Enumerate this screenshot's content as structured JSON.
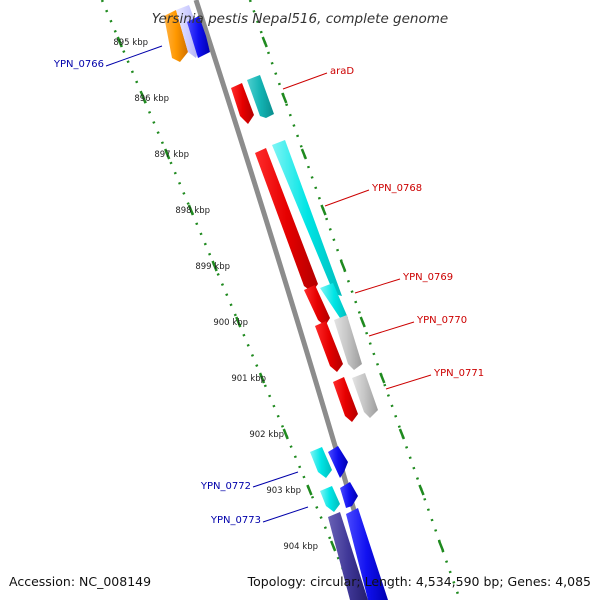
{
  "title": "Yersinia pestis Nepal516, complete genome",
  "colors": {
    "backbone": "#8c8c8c",
    "tick": "#1f8a1f",
    "forward_label": "#cc0000",
    "reverse_label": "#0000aa"
  },
  "ticks": [
    {
      "position_kbp": 895,
      "label": "895 kbp"
    },
    {
      "position_kbp": 896,
      "label": "896 kbp"
    },
    {
      "position_kbp": 897,
      "label": "897 kbp"
    },
    {
      "position_kbp": 898,
      "label": "898 kbp"
    },
    {
      "position_kbp": 899,
      "label": "899 kbp"
    },
    {
      "position_kbp": 900,
      "label": "900 kbp"
    },
    {
      "position_kbp": 901,
      "label": "901 kbp"
    },
    {
      "position_kbp": 902,
      "label": "902 kbp"
    },
    {
      "position_kbp": 903,
      "label": "903 kbp"
    },
    {
      "position_kbp": 904,
      "label": "904 kbp"
    }
  ],
  "gene_labels": [
    {
      "name": "YPN_0766",
      "strand": "reverse"
    },
    {
      "name": "araD",
      "strand": "forward"
    },
    {
      "name": "YPN_0768",
      "strand": "forward"
    },
    {
      "name": "YPN_0769",
      "strand": "forward"
    },
    {
      "name": "YPN_0770",
      "strand": "forward"
    },
    {
      "name": "YPN_0771",
      "strand": "forward"
    },
    {
      "name": "YPN_0772",
      "strand": "reverse"
    },
    {
      "name": "YPN_0773",
      "strand": "reverse"
    }
  ],
  "footer": {
    "accession": "Accession: NC_008149",
    "topology": "Topology: circular; Length: 4,534,590 bp; Genes: 4,085"
  }
}
